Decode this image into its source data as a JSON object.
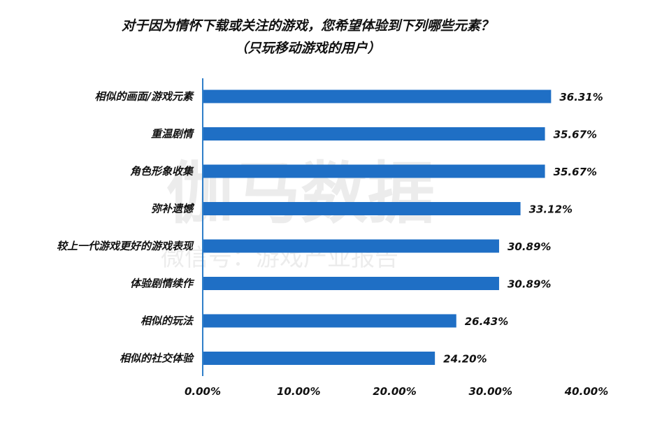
{
  "chart_data": {
    "type": "bar",
    "orientation": "horizontal",
    "title": "对于因为情怀下载或关注的游戏，您希望体验到下列哪些元素？",
    "subtitle": "（只玩移动游戏的用户）",
    "categories": [
      "相似的画面/游戏元素",
      "重温剧情",
      "角色形象收集",
      "弥补遗憾",
      "较上一代游戏更好的游戏表现",
      "体验剧情续作",
      "相似的玩法",
      "相似的社交体验"
    ],
    "values": [
      36.31,
      35.67,
      35.67,
      33.12,
      30.89,
      30.89,
      26.43,
      24.2
    ],
    "value_labels": [
      "36.31%",
      "35.67%",
      "35.67%",
      "33.12%",
      "30.89%",
      "30.89%",
      "26.43%",
      "24.20%"
    ],
    "x_ticks": [
      0,
      10,
      20,
      30,
      40
    ],
    "x_tick_labels": [
      "0.00%",
      "10.00%",
      "20.00%",
      "30.00%",
      "40.00%"
    ],
    "xlim": [
      0,
      40
    ],
    "grid": false,
    "bar_color": "#1f6fc5",
    "axis_color": "#2f7ec9"
  },
  "watermark": {
    "main": "伽马数据",
    "sub": "微信号：游戏产业报告"
  }
}
